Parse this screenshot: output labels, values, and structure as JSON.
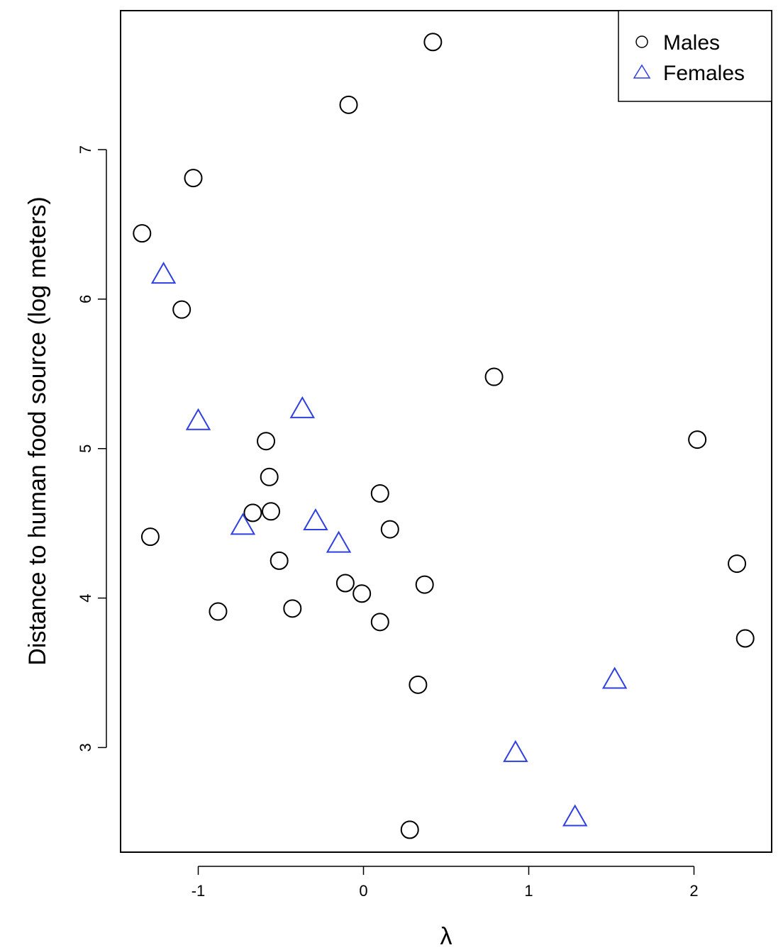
{
  "chart_data": {
    "type": "scatter",
    "title": "",
    "xlabel": "λ",
    "ylabel": "Distance to human food source (log meters)",
    "xlim": [
      -1.47,
      2.47
    ],
    "ylim": [
      2.3,
      7.93
    ],
    "x_ticks": [
      -1,
      0,
      1,
      2
    ],
    "x_tick_labels": [
      "-1",
      "0",
      "1",
      "2"
    ],
    "y_ticks": [
      3,
      4,
      5,
      6,
      7
    ],
    "y_tick_labels": [
      "3",
      "4",
      "5",
      "6",
      "7"
    ],
    "grid": false,
    "legend": "top-right",
    "series": [
      {
        "name": "Males",
        "marker": "circle",
        "color": "#000000",
        "points": [
          {
            "x": 0.42,
            "y": 7.72
          },
          {
            "x": -0.09,
            "y": 7.3
          },
          {
            "x": -1.03,
            "y": 6.81
          },
          {
            "x": -1.34,
            "y": 6.44
          },
          {
            "x": -1.1,
            "y": 5.93
          },
          {
            "x": 0.79,
            "y": 5.48
          },
          {
            "x": -0.59,
            "y": 5.05
          },
          {
            "x": 2.02,
            "y": 5.06
          },
          {
            "x": -0.57,
            "y": 4.81
          },
          {
            "x": 0.1,
            "y": 4.7
          },
          {
            "x": -0.67,
            "y": 4.57
          },
          {
            "x": -0.56,
            "y": 4.58
          },
          {
            "x": 0.16,
            "y": 4.46
          },
          {
            "x": -1.29,
            "y": 4.41
          },
          {
            "x": -0.51,
            "y": 4.25
          },
          {
            "x": 2.26,
            "y": 4.23
          },
          {
            "x": -0.11,
            "y": 4.1
          },
          {
            "x": 0.37,
            "y": 4.09
          },
          {
            "x": -0.01,
            "y": 4.03
          },
          {
            "x": -0.43,
            "y": 3.93
          },
          {
            "x": -0.88,
            "y": 3.91
          },
          {
            "x": 0.1,
            "y": 3.84
          },
          {
            "x": 2.31,
            "y": 3.73
          },
          {
            "x": 0.33,
            "y": 3.42
          },
          {
            "x": 0.28,
            "y": 2.45
          }
        ]
      },
      {
        "name": "Females",
        "marker": "triangle",
        "color": "#2f3fe0",
        "points": [
          {
            "x": -1.21,
            "y": 6.16
          },
          {
            "x": -1.0,
            "y": 5.18
          },
          {
            "x": -0.37,
            "y": 5.26
          },
          {
            "x": -0.73,
            "y": 4.48
          },
          {
            "x": -0.29,
            "y": 4.51
          },
          {
            "x": -0.15,
            "y": 4.36
          },
          {
            "x": 1.52,
            "y": 3.45
          },
          {
            "x": 0.92,
            "y": 2.96
          },
          {
            "x": 1.28,
            "y": 2.53
          }
        ]
      }
    ]
  }
}
